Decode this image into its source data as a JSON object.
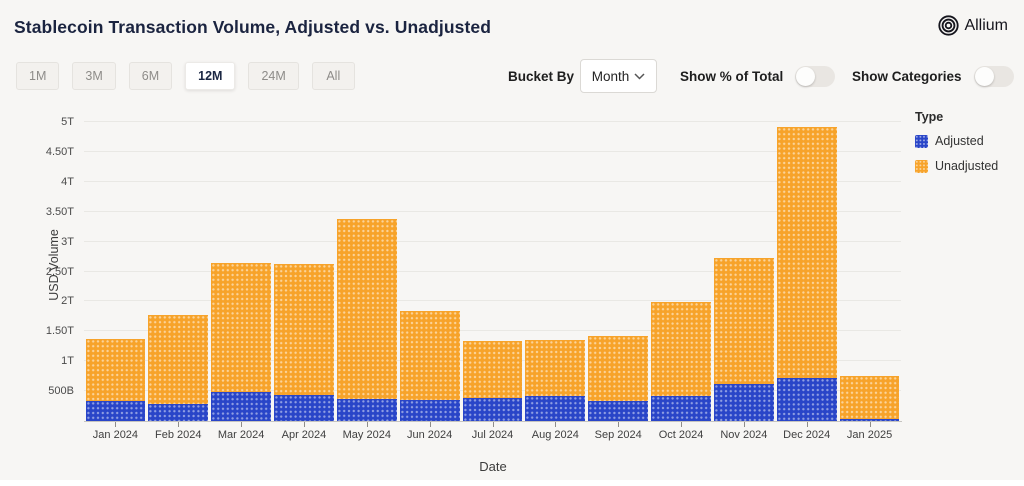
{
  "header": {
    "title": "Stablecoin Transaction Volume, Adjusted vs. Unadjusted",
    "logo_text": "Allium"
  },
  "toolbar": {
    "ranges": [
      "1M",
      "3M",
      "6M",
      "12M",
      "24M",
      "All"
    ],
    "active_range": "12M",
    "bucket_by_label": "Bucket By",
    "bucket_value": "Month",
    "toggles": [
      {
        "label": "Show % of Total",
        "on": false
      },
      {
        "label": "Show Categories",
        "on": false
      }
    ]
  },
  "legend": {
    "title": "Type",
    "items": [
      {
        "label": "Adjusted",
        "color": "#2945C8"
      },
      {
        "label": "Unadjusted",
        "color": "#F7A32A"
      }
    ]
  },
  "axes": {
    "ylabel": "USD Volume",
    "xlabel": "Date"
  },
  "colors": {
    "adjusted": "#2945C8",
    "unadjusted": "#F7A32A",
    "background": "#F7F6F4",
    "gridline": "#E9E8E4",
    "title_text": "#1B2440"
  },
  "chart_data": {
    "type": "bar",
    "stacked": true,
    "title": "Stablecoin Transaction Volume, Adjusted vs. Unadjusted",
    "xlabel": "Date",
    "ylabel": "USD Volume",
    "unit": "billions USD",
    "grid": true,
    "legend_position": "right",
    "ylim": [
      0,
      5000
    ],
    "categories": [
      "Jan 2024",
      "Feb 2024",
      "Mar 2024",
      "Apr 2024",
      "May 2024",
      "Jun 2024",
      "Jul 2024",
      "Aug 2024",
      "Sep 2024",
      "Oct 2024",
      "Nov 2024",
      "Dec 2024",
      "Jan 2025"
    ],
    "series": [
      {
        "name": "Adjusted",
        "values": [
          330,
          285,
          480,
          430,
          370,
          350,
          380,
          420,
          335,
          425,
          615,
          720,
          30
        ]
      },
      {
        "name": "Unadjusted",
        "values": [
          1050,
          1480,
          2160,
          2190,
          3000,
          1490,
          950,
          940,
          1080,
          1560,
          2110,
          4200,
          720
        ]
      }
    ],
    "totals": [
      1380,
      1765,
      2640,
      2620,
      3370,
      1840,
      1330,
      1360,
      1415,
      1985,
      2725,
      4920,
      750
    ],
    "y_ticks": [
      {
        "value": 500,
        "label": "500B"
      },
      {
        "value": 1000,
        "label": "1T"
      },
      {
        "value": 1500,
        "label": "1.50T"
      },
      {
        "value": 2000,
        "label": "2T"
      },
      {
        "value": 2500,
        "label": "2.50T"
      },
      {
        "value": 3000,
        "label": "3T"
      },
      {
        "value": 3500,
        "label": "3.50T"
      },
      {
        "value": 4000,
        "label": "4T"
      },
      {
        "value": 4500,
        "label": "4.50T"
      },
      {
        "value": 5000,
        "label": "5T"
      }
    ]
  }
}
